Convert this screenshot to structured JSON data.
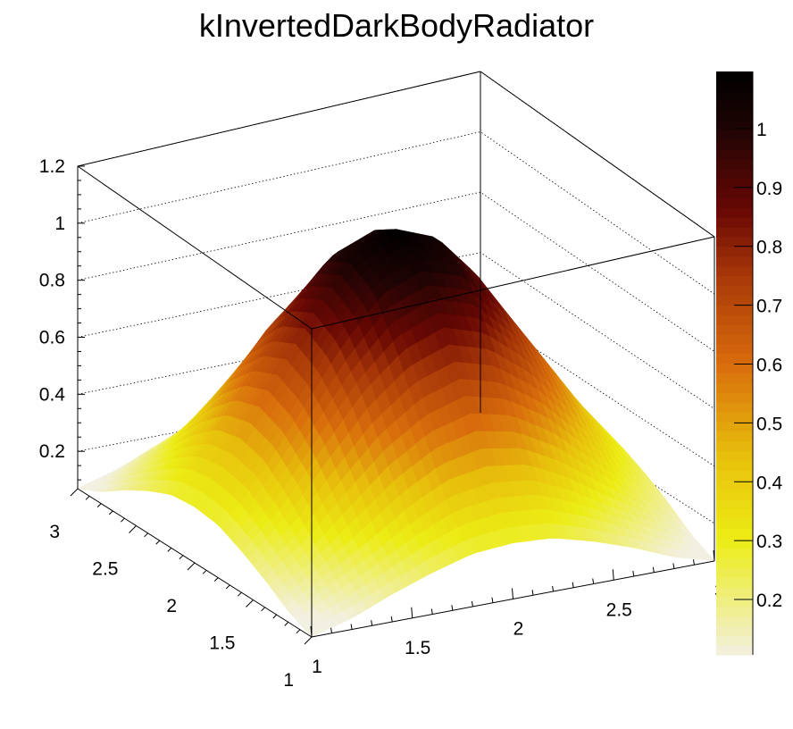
{
  "chart_data": {
    "type": "surface",
    "title": "kInvertedDarkBodyRadiator",
    "palette": "kInvertedDarkBodyRadiator",
    "x": [
      1.0,
      1.2,
      1.4,
      1.6,
      1.8,
      2.0,
      2.2,
      2.4,
      2.6,
      2.8,
      3.0
    ],
    "y": [
      1.0,
      1.2,
      1.4,
      1.6,
      1.8,
      2.0,
      2.2,
      2.4,
      2.6,
      2.8,
      3.0
    ],
    "z": [
      [
        0.07,
        0.11,
        0.17,
        0.22,
        0.26,
        0.27,
        0.26,
        0.22,
        0.17,
        0.11,
        0.07
      ],
      [
        0.11,
        0.19,
        0.27,
        0.36,
        0.43,
        0.45,
        0.43,
        0.36,
        0.27,
        0.19,
        0.11
      ],
      [
        0.17,
        0.27,
        0.41,
        0.54,
        0.63,
        0.67,
        0.63,
        0.54,
        0.41,
        0.27,
        0.17
      ],
      [
        0.22,
        0.36,
        0.54,
        0.71,
        0.83,
        0.88,
        0.83,
        0.71,
        0.54,
        0.36,
        0.22
      ],
      [
        0.26,
        0.43,
        0.63,
        0.83,
        0.99,
        1.04,
        0.99,
        0.83,
        0.63,
        0.43,
        0.26
      ],
      [
        0.27,
        0.45,
        0.67,
        0.88,
        1.04,
        1.1,
        1.04,
        0.88,
        0.67,
        0.45,
        0.27
      ],
      [
        0.26,
        0.43,
        0.63,
        0.83,
        0.99,
        1.04,
        0.99,
        0.83,
        0.63,
        0.43,
        0.26
      ],
      [
        0.22,
        0.36,
        0.54,
        0.71,
        0.83,
        0.88,
        0.83,
        0.71,
        0.54,
        0.36,
        0.22
      ],
      [
        0.17,
        0.27,
        0.41,
        0.54,
        0.63,
        0.67,
        0.63,
        0.54,
        0.41,
        0.27,
        0.17
      ],
      [
        0.11,
        0.19,
        0.27,
        0.36,
        0.43,
        0.45,
        0.43,
        0.36,
        0.27,
        0.19,
        0.11
      ],
      [
        0.07,
        0.11,
        0.17,
        0.22,
        0.26,
        0.27,
        0.26,
        0.22,
        0.17,
        0.11,
        0.07
      ]
    ],
    "xlim": [
      1,
      3
    ],
    "ylim": [
      1,
      3
    ],
    "zlim": [
      0.069,
      1.2
    ],
    "x_ticks": [
      "1",
      "1.5",
      "2",
      "2.5",
      "3"
    ],
    "y_ticks": [
      "1",
      "1.5",
      "2",
      "2.5",
      "3"
    ],
    "z_ticks": [
      "0.2",
      "0.4",
      "0.6",
      "0.8",
      "1",
      "1.2"
    ],
    "colorbar": {
      "range": [
        0.106,
        1.097
      ],
      "ticks": [
        "0.2",
        "0.3",
        "0.4",
        "0.5",
        "0.6",
        "0.7",
        "0.8",
        "0.9",
        "1"
      ],
      "colors": [
        "#f2f0e0",
        "#ecec14",
        "#e8c00c",
        "#d86c0c",
        "#a83808",
        "#6a0804",
        "#200404",
        "#000000"
      ]
    },
    "grid": true
  }
}
